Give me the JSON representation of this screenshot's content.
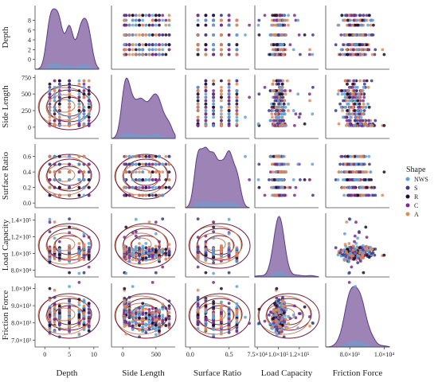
{
  "chart_data": {
    "type": "scatter",
    "subtype": "pairplot",
    "variables": [
      "Depth",
      "Side Length",
      "Surface Ratio",
      "Load Capacity",
      "Friction Force"
    ],
    "axes": {
      "Depth": {
        "range": [
          -2,
          11
        ],
        "ticks": [
          0,
          2,
          4,
          6,
          8
        ],
        "bottom_ticks": [
          0,
          5,
          10
        ],
        "tick_labels": [
          "0",
          "2",
          "4",
          "6",
          "8"
        ],
        "bottom_tick_labels": [
          "0",
          "5",
          "10"
        ]
      },
      "Side Length": {
        "range": [
          -170,
          790
        ],
        "ticks": [
          0,
          250,
          500,
          750
        ],
        "bottom_ticks": [
          0,
          500
        ],
        "tick_labels": [
          "0",
          "250",
          "500",
          "750"
        ],
        "bottom_tick_labels": [
          "0",
          "500"
        ]
      },
      "Surface Ratio": {
        "range": [
          -0.06,
          0.76
        ],
        "ticks": [
          0.0,
          0.2,
          0.4,
          0.6
        ],
        "bottom_ticks": [
          0.0,
          0.5
        ],
        "tick_labels": [
          "0.0",
          "0.2",
          "0.4",
          "0.6"
        ],
        "bottom_tick_labels": [
          "0.0",
          "0.5"
        ]
      },
      "Load Capacity": {
        "range": [
          72000,
          148000
        ],
        "ticks": [
          80000,
          100000,
          120000,
          140000
        ],
        "bottom_ticks": [
          75000,
          100000,
          125000
        ],
        "tick_labels": [
          "8.0×10⁴",
          "1.0×10⁵",
          "1.2×10⁵",
          "1.4×10⁵"
        ],
        "bottom_tick_labels": [
          "7.5×10⁴",
          "1.0×10⁵",
          "1.2×10⁵"
        ]
      },
      "Friction Force": {
        "range": [
          6600,
          10300
        ],
        "ticks": [
          7000,
          8000,
          9000,
          10000
        ],
        "bottom_ticks": [
          8000,
          10000
        ],
        "tick_labels": [
          "7.0×10³",
          "8.0×10³",
          "9.0×10³",
          "1.0×10⁴"
        ],
        "bottom_tick_labels": [
          "8.0×10³",
          "1.0×10⁴"
        ]
      }
    },
    "legend": {
      "title": "Shape",
      "placement": "right",
      "entries": [
        {
          "name": "NWS",
          "color": "#5fa3d6"
        },
        {
          "name": "S",
          "color": "#3d3a8c"
        },
        {
          "name": "R",
          "color": "#1c0d2c"
        },
        {
          "name": "C",
          "color": "#7b2f8c"
        },
        {
          "name": "A",
          "color": "#e08a58"
        }
      ]
    },
    "series_summary": {
      "Depth_levels": [
        1,
        2,
        3,
        5,
        7,
        8,
        9
      ],
      "SideLength_levels": [
        25,
        50,
        100,
        150,
        200,
        250,
        300,
        350,
        400,
        450,
        500,
        550,
        600,
        650,
        700
      ],
      "SurfaceRatio_levels": [
        0.1,
        0.2,
        0.3,
        0.4,
        0.5,
        0.6
      ],
      "LoadCapacity_center": 100000,
      "FrictionForce_center": 8200
    },
    "kde_colors": {
      "contour_a": "#c97b52",
      "contour_b": "#6b1d3f",
      "fill": "#7c5a9e"
    },
    "grid": false
  }
}
